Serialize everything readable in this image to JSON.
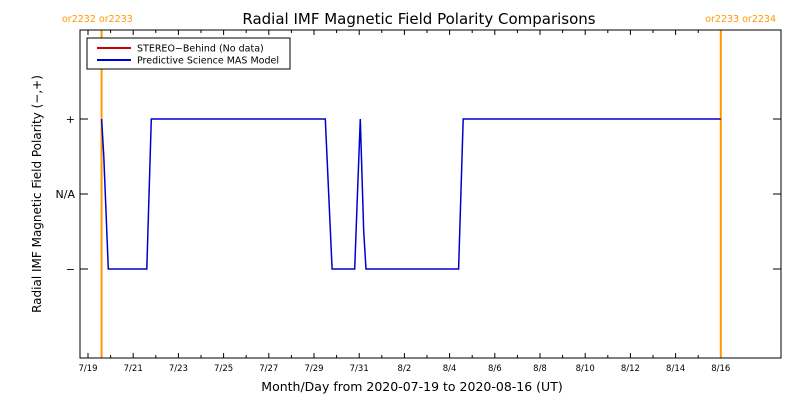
{
  "colors": {
    "background": "#ffffff",
    "axis": "#000000",
    "carrington_marker": "#ff9900",
    "stereo_behind": "#cc0000",
    "mas_model": "#0000cc"
  },
  "chart_data": {
    "type": "line",
    "title": "Radial IMF Magnetic Field Polarity Comparisons",
    "xlabel": "Month/Day from 2020-07-19 to 2020-08-16 (UT)",
    "ylabel": "Radial IMF Magnetic Field Polarity (−,+)",
    "x_unit": "days since 2020-07-19 00:00 UT",
    "xlim": [
      0,
      29
    ],
    "ylim": [
      -2,
      2
    ],
    "x_ticks": [
      {
        "x": 0,
        "label": "7/19"
      },
      {
        "x": 2,
        "label": "7/21"
      },
      {
        "x": 4,
        "label": "7/23"
      },
      {
        "x": 6,
        "label": "7/25"
      },
      {
        "x": 8,
        "label": "7/27"
      },
      {
        "x": 10,
        "label": "7/29"
      },
      {
        "x": 12,
        "label": "7/31"
      },
      {
        "x": 14,
        "label": "8/2"
      },
      {
        "x": 16,
        "label": "8/4"
      },
      {
        "x": 18,
        "label": "8/6"
      },
      {
        "x": 20,
        "label": "8/8"
      },
      {
        "x": 22,
        "label": "8/10"
      },
      {
        "x": 24,
        "label": "8/12"
      },
      {
        "x": 26,
        "label": "8/14"
      },
      {
        "x": 28,
        "label": "8/16"
      }
    ],
    "y_ticks": [
      {
        "y": 1,
        "label": "+"
      },
      {
        "y": 0,
        "label": "N/A"
      },
      {
        "y": -1,
        "label": "−"
      }
    ],
    "carrington_markers": [
      {
        "x": 0.6,
        "label": "or2232 or2233",
        "side": "left"
      },
      {
        "x": 28.0,
        "label": "or2233 or2234",
        "side": "right"
      }
    ],
    "legend": {
      "placement": "top-left",
      "entries": [
        "STEREO−Behind (No data)",
        "Predictive Science MAS Model"
      ]
    },
    "series": [
      {
        "name": "STEREO−Behind (No data)",
        "x": [],
        "y": []
      },
      {
        "name": "Predictive Science MAS Model",
        "x": [
          0.6,
          0.7,
          0.9,
          2.6,
          2.8,
          10.5,
          10.8,
          11.8,
          11.9,
          12.05,
          12.2,
          12.3,
          16.4,
          16.6,
          28.0
        ],
        "y": [
          1,
          0.5,
          -1,
          -1,
          1,
          1,
          -1,
          -1,
          -0.2,
          1,
          -0.5,
          -1,
          -1,
          1,
          1
        ]
      }
    ]
  }
}
